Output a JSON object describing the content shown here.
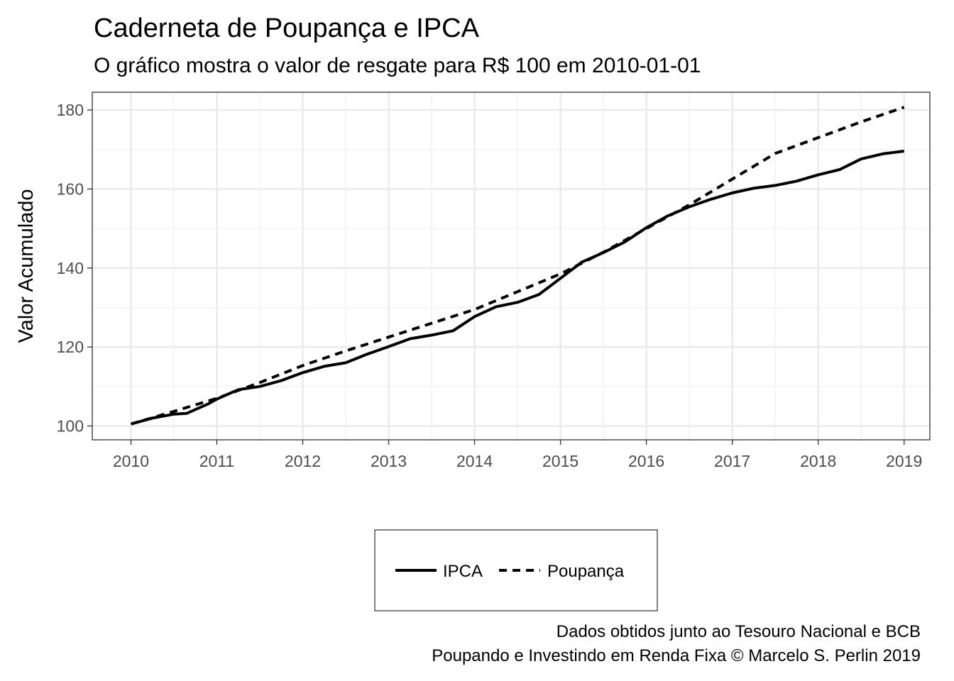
{
  "chart_data": {
    "type": "line",
    "title": "Caderneta de Poupança e IPCA",
    "subtitle": "O gráfico mostra o valor de resgate para R$ 100 em 2010-01-01",
    "xlabel": "",
    "ylabel": "Valor Acumulado",
    "xlim": [
      2009.55,
      2019.3
    ],
    "ylim": [
      96.5,
      184.5
    ],
    "x_ticks": [
      "2010",
      "2011",
      "2012",
      "2013",
      "2014",
      "2015",
      "2016",
      "2017",
      "2018",
      "2019"
    ],
    "y_ticks": [
      "100",
      "120",
      "140",
      "160",
      "180"
    ],
    "grid": true,
    "legend_position": "bottom",
    "series": [
      {
        "name": "IPCA",
        "line_style": "solid",
        "color": "#000000",
        "x": [
          2010.0,
          2010.25,
          2010.5,
          2010.65,
          2010.9,
          2011.0,
          2011.25,
          2011.5,
          2011.75,
          2012.0,
          2012.25,
          2012.5,
          2012.75,
          2013.0,
          2013.25,
          2013.5,
          2013.75,
          2014.0,
          2014.25,
          2014.5,
          2014.75,
          2015.0,
          2015.25,
          2015.5,
          2015.75,
          2016.0,
          2016.25,
          2016.5,
          2016.75,
          2017.0,
          2017.25,
          2017.5,
          2017.75,
          2018.0,
          2018.25,
          2018.5,
          2018.75,
          2019.0
        ],
        "values": [
          100.5,
          102.0,
          103.0,
          103.2,
          105.6,
          106.8,
          109.2,
          110.0,
          111.5,
          113.5,
          115.1,
          116.0,
          118.2,
          120.1,
          122.1,
          123.0,
          124.1,
          127.7,
          130.2,
          131.3,
          133.3,
          137.4,
          141.5,
          143.9,
          146.6,
          150.2,
          153.2,
          155.5,
          157.4,
          159.0,
          160.2,
          160.9,
          162.0,
          163.6,
          164.9,
          167.6,
          168.9,
          169.6
        ]
      },
      {
        "name": "Poupança",
        "line_style": "dashed",
        "color": "#000000",
        "x": [
          2010.0,
          2010.5,
          2011.0,
          2011.5,
          2012.0,
          2012.5,
          2013.0,
          2013.5,
          2014.0,
          2014.5,
          2015.0,
          2015.5,
          2016.0,
          2016.5,
          2017.0,
          2017.5,
          2018.0,
          2018.5,
          2019.0
        ],
        "values": [
          100.5,
          103.7,
          107.0,
          111.0,
          115.3,
          119.0,
          122.5,
          126.0,
          129.5,
          134.0,
          138.5,
          144.0,
          150.0,
          156.0,
          162.5,
          169.0,
          173.0,
          177.0,
          180.7
        ]
      }
    ],
    "caption": [
      "Dados obtidos junto ao Tesouro Nacional e BCB",
      "Poupando e Investindo em Renda Fixa © Marcelo S. Perlin 2019"
    ]
  }
}
